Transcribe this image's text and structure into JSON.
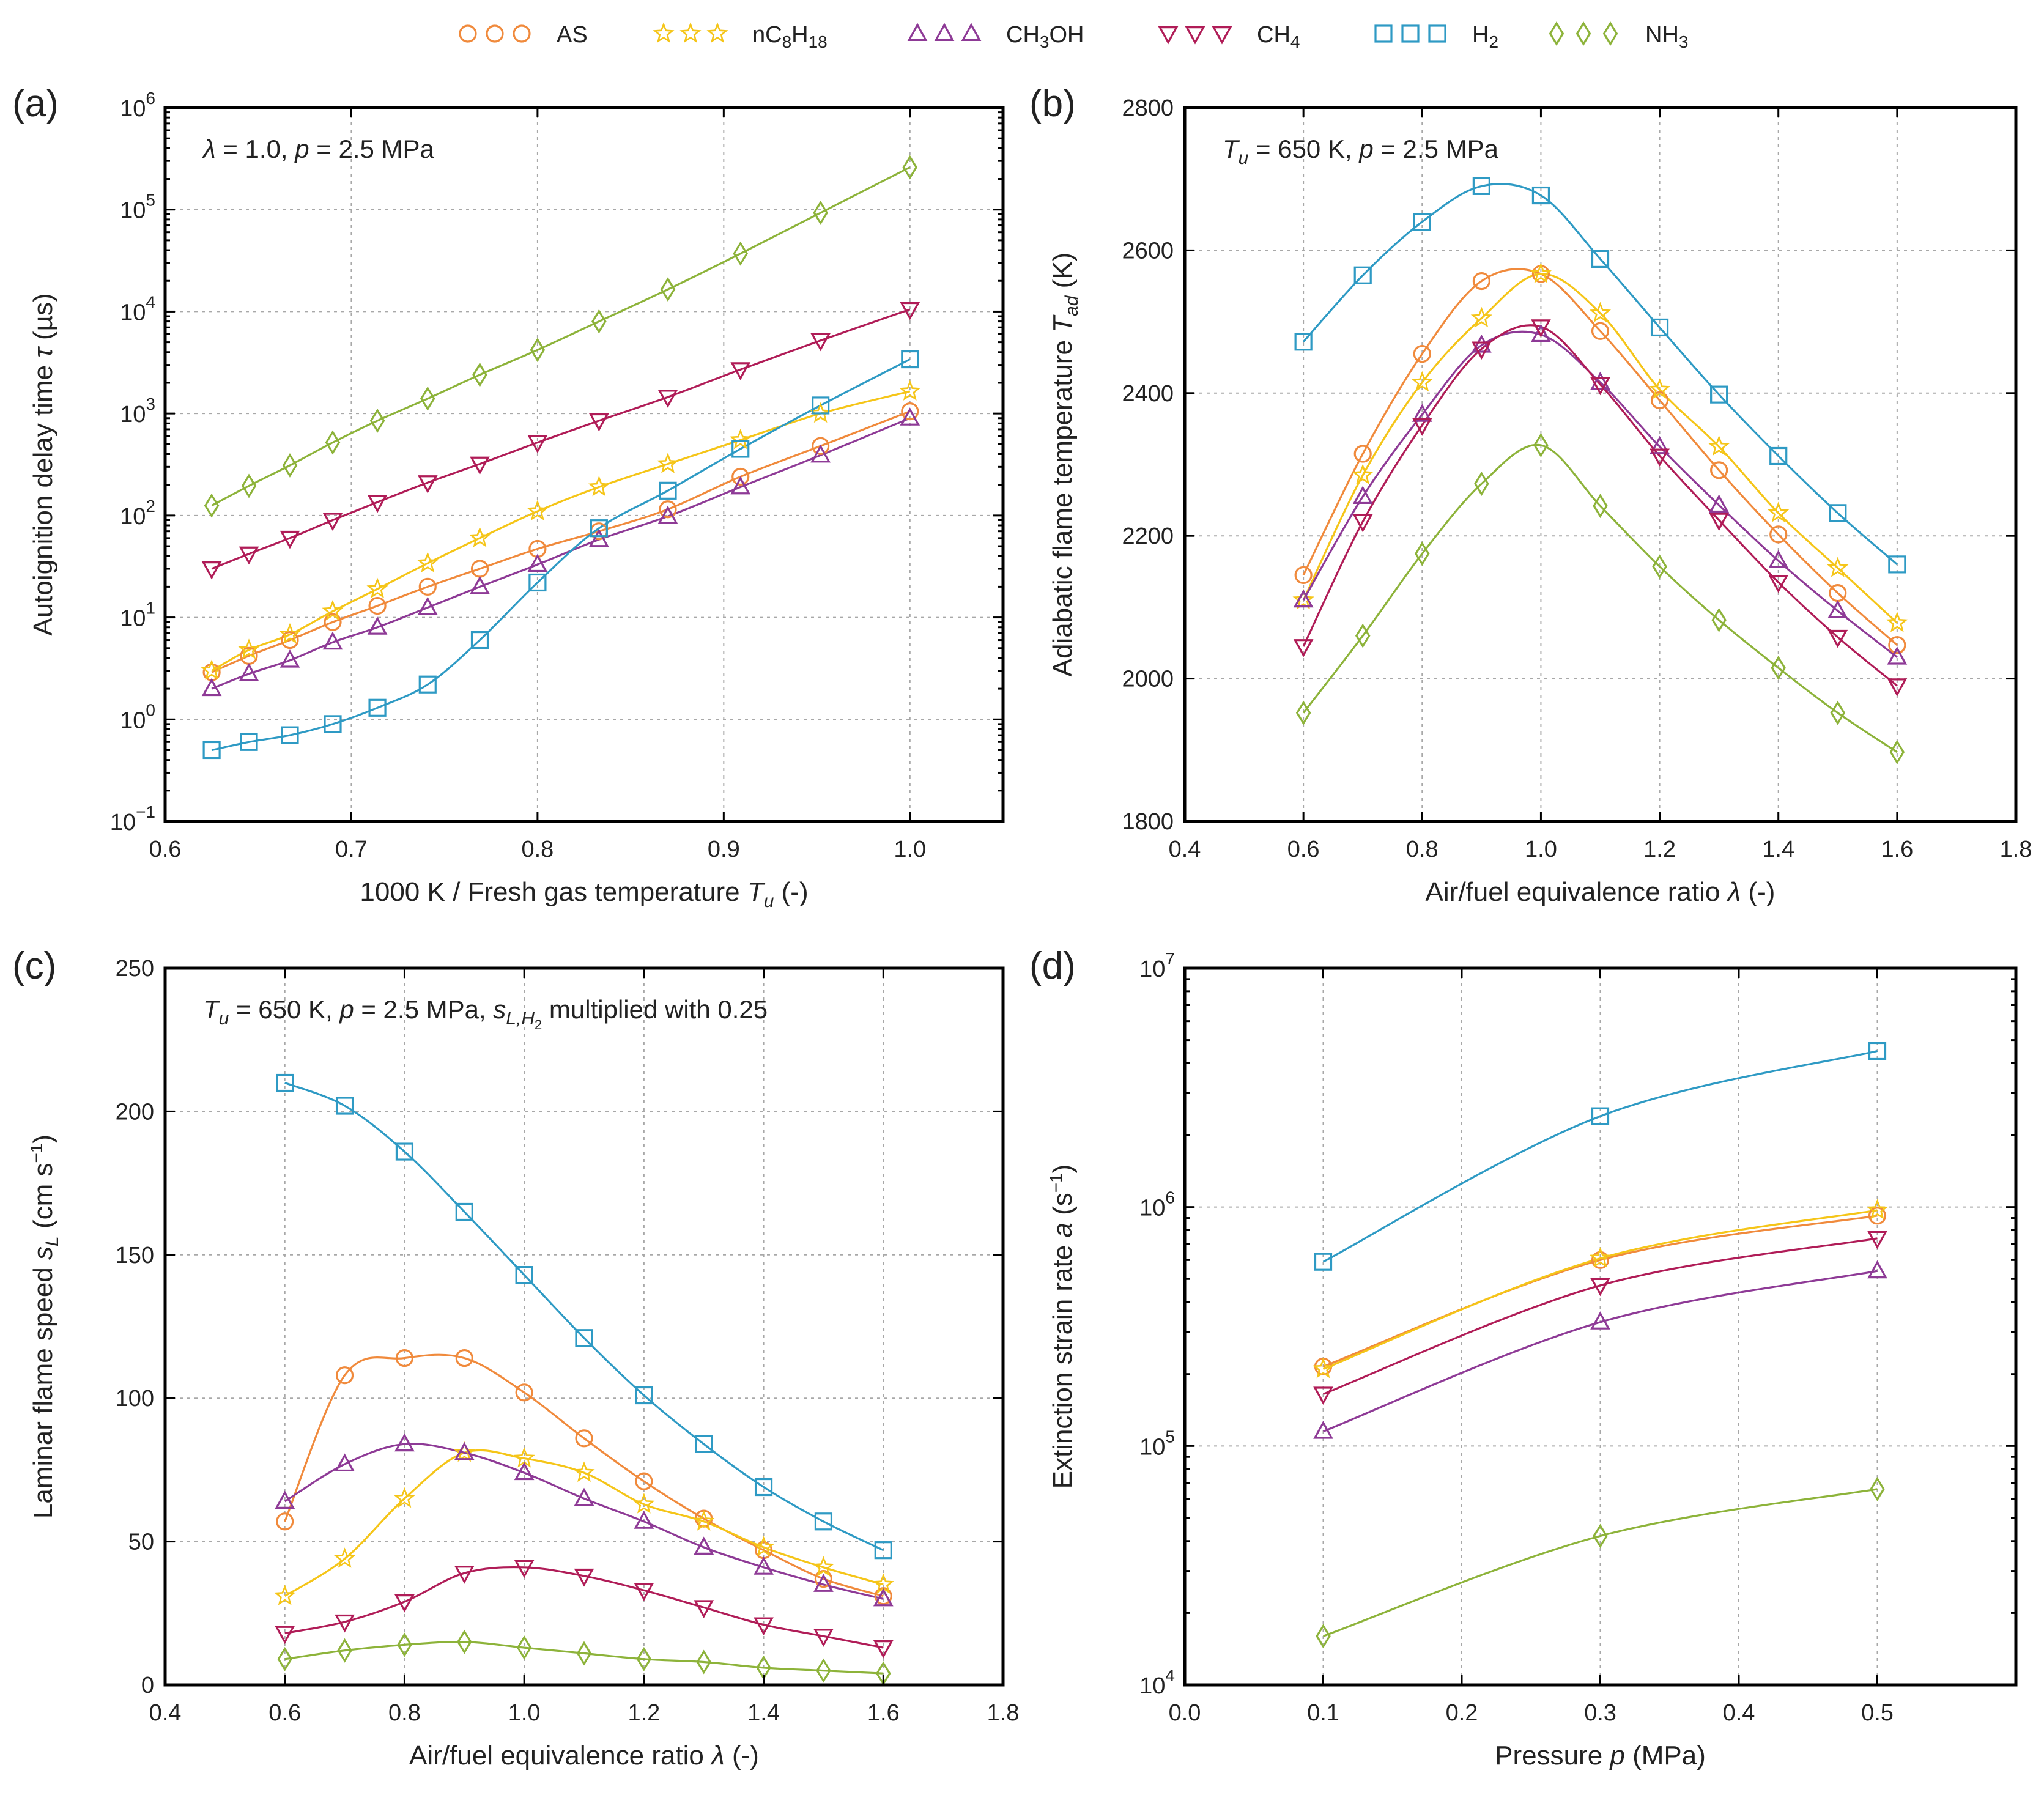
{
  "colors": {
    "AS": "#f08a3c",
    "nC8H18": "#f5c518",
    "CH3OH": "#8e3a96",
    "CH4": "#b01c57",
    "H2": "#2e9ac4",
    "NH3": "#8db33a"
  },
  "legend": [
    {
      "key": "AS",
      "marker": "circle",
      "label": "AS"
    },
    {
      "key": "nC8H18",
      "marker": "star",
      "label": "nC8H18",
      "label_parts": [
        "nC",
        "8",
        "H",
        "18"
      ]
    },
    {
      "key": "CH3OH",
      "marker": "triangle-up",
      "label": "CH3OH",
      "label_parts": [
        "CH",
        "3",
        "OH",
        ""
      ]
    },
    {
      "key": "CH4",
      "marker": "triangle-down",
      "label": "CH4",
      "label_parts": [
        "CH",
        "4"
      ]
    },
    {
      "key": "H2",
      "marker": "square",
      "label": "H2",
      "label_parts": [
        "H",
        "2"
      ]
    },
    {
      "key": "NH3",
      "marker": "diamond",
      "label": "NH3",
      "label_parts": [
        "NH",
        "3"
      ]
    }
  ],
  "chart_data": [
    {
      "id": "a",
      "type": "line",
      "panel_label": "(a)",
      "annotation": "λ = 1.0, p = 2.5 MPa",
      "xlabel": "1000 K / Fresh gas temperature T_u (-)",
      "ylabel": "Autoignition delay time τ (µs)",
      "yscale": "log",
      "xlim": [
        0.6,
        1.05
      ],
      "ylim": [
        0.1,
        1000000
      ],
      "xticks": [
        0.6,
        0.7,
        0.8,
        0.9,
        1.0
      ],
      "xtick_labels": [
        "0.6",
        "0.7",
        "0.8",
        "0.9",
        "1.0"
      ],
      "yticks_exp": [
        -1,
        0,
        1,
        2,
        3,
        4,
        5,
        6
      ],
      "grid": true,
      "x": [
        0.625,
        0.645,
        0.667,
        0.69,
        0.714,
        0.741,
        0.769,
        0.8,
        0.833,
        0.87,
        0.909,
        0.952,
        1.0
      ],
      "series": [
        {
          "name": "AS",
          "values": [
            2.9,
            4.2,
            6.0,
            9.0,
            13,
            20,
            30,
            47,
            70,
            115,
            240,
            480,
            1050
          ]
        },
        {
          "name": "nC8H18",
          "values": [
            3.0,
            4.8,
            6.8,
            11.5,
            19,
            34,
            60,
            110,
            190,
            320,
            550,
            1000,
            1650
          ]
        },
        {
          "name": "CH3OH",
          "values": [
            2.0,
            2.8,
            3.8,
            5.7,
            8.0,
            12.5,
            20,
            33,
            58,
            98,
            190,
            390,
            900
          ]
        },
        {
          "name": "CH4",
          "values": [
            30,
            42,
            60,
            90,
            135,
            210,
            320,
            520,
            850,
            1450,
            2700,
            5200,
            10500
          ]
        },
        {
          "name": "H2",
          "values": [
            0.5,
            0.6,
            0.7,
            0.9,
            1.3,
            2.2,
            6.0,
            22,
            75,
            175,
            450,
            1200,
            3400
          ]
        },
        {
          "name": "NH3",
          "values": [
            125,
            195,
            310,
            520,
            850,
            1400,
            2400,
            4200,
            8000,
            16500,
            37000,
            93000,
            260000
          ]
        }
      ]
    },
    {
      "id": "b",
      "type": "line",
      "panel_label": "(b)",
      "annotation": "T_u = 650 K, p = 2.5 MPa",
      "xlabel": "Air/fuel equivalence ratio λ (-)",
      "ylabel": "Adiabatic flame temperature T_ad (K)",
      "yscale": "linear",
      "xlim": [
        0.4,
        1.8
      ],
      "ylim": [
        1800,
        2800
      ],
      "xticks": [
        0.4,
        0.6,
        0.8,
        1.0,
        1.2,
        1.4,
        1.6,
        1.8
      ],
      "xtick_labels": [
        "0.4",
        "0.6",
        "0.8",
        "1.0",
        "1.2",
        "1.4",
        "1.6",
        "1.8"
      ],
      "yticks": [
        1800,
        2000,
        2200,
        2400,
        2600,
        2800
      ],
      "ytick_labels": [
        "1800",
        "2000",
        "2200",
        "2400",
        "2600",
        "2800"
      ],
      "grid": true,
      "x": [
        0.6,
        0.7,
        0.8,
        0.9,
        1.0,
        1.1,
        1.2,
        1.3,
        1.4,
        1.5,
        1.6
      ],
      "series": [
        {
          "name": "AS",
          "values": [
            2145,
            2315,
            2455,
            2557,
            2567,
            2487,
            2390,
            2292,
            2202,
            2120,
            2047
          ]
        },
        {
          "name": "nC8H18",
          "values": [
            2110,
            2285,
            2415,
            2505,
            2567,
            2512,
            2405,
            2325,
            2232,
            2155,
            2078
          ]
        },
        {
          "name": "CH3OH",
          "values": [
            2110,
            2255,
            2370,
            2467,
            2482,
            2415,
            2325,
            2243,
            2165,
            2095,
            2030
          ]
        },
        {
          "name": "CH4",
          "values": [
            2045,
            2220,
            2355,
            2462,
            2493,
            2412,
            2312,
            2222,
            2135,
            2058,
            1990
          ]
        },
        {
          "name": "H2",
          "values": [
            2472,
            2565,
            2640,
            2690,
            2677,
            2588,
            2492,
            2398,
            2312,
            2232,
            2160
          ]
        },
        {
          "name": "NH3",
          "values": [
            1952,
            2060,
            2175,
            2273,
            2327,
            2242,
            2157,
            2082,
            2015,
            1952,
            1897
          ]
        }
      ]
    },
    {
      "id": "c",
      "type": "line",
      "panel_label": "(c)",
      "annotation": "T_u = 650 K, p = 2.5 MPa, s_L,H2 multiplied with 0.25",
      "xlabel": "Air/fuel equivalence ratio λ (-)",
      "ylabel": "Laminar flame speed s_L (cm s⁻¹)",
      "yscale": "linear",
      "xlim": [
        0.4,
        1.8
      ],
      "ylim": [
        0,
        250
      ],
      "xticks": [
        0.4,
        0.6,
        0.8,
        1.0,
        1.2,
        1.4,
        1.6,
        1.8
      ],
      "xtick_labels": [
        "0.4",
        "0.6",
        "0.8",
        "1.0",
        "1.2",
        "1.4",
        "1.6",
        "1.8"
      ],
      "yticks": [
        0,
        50,
        100,
        150,
        200,
        250
      ],
      "ytick_labels": [
        "0",
        "50",
        "100",
        "150",
        "200",
        "250"
      ],
      "grid": true,
      "x": [
        0.6,
        0.7,
        0.8,
        0.9,
        1.0,
        1.1,
        1.2,
        1.3,
        1.4,
        1.5,
        1.6
      ],
      "series": [
        {
          "name": "AS",
          "values": [
            57,
            108,
            114,
            114,
            102,
            86,
            71,
            58,
            47,
            37,
            31
          ]
        },
        {
          "name": "nC8H18",
          "values": [
            31,
            44,
            65,
            81,
            79,
            74,
            63,
            57,
            48,
            41,
            35
          ]
        },
        {
          "name": "CH3OH",
          "values": [
            64,
            77,
            84,
            81,
            74,
            65,
            57,
            48,
            41,
            35,
            30
          ]
        },
        {
          "name": "CH4",
          "values": [
            18,
            22,
            29,
            39,
            41,
            38,
            33,
            27,
            21,
            17,
            13
          ]
        },
        {
          "name": "H2",
          "values": [
            210,
            202,
            186,
            165,
            143,
            121,
            101,
            84,
            69,
            57,
            47
          ]
        },
        {
          "name": "NH3",
          "values": [
            9,
            12,
            14,
            15,
            13,
            11,
            9,
            8,
            6,
            5,
            4
          ]
        }
      ]
    },
    {
      "id": "d",
      "type": "line",
      "panel_label": "(d)",
      "annotation": "",
      "xlabel": "Pressure p (MPa)",
      "ylabel": "Extinction strain rate a (s⁻¹)",
      "yscale": "log",
      "xlim": [
        0.0,
        0.6
      ],
      "ylim": [
        10000,
        10000000
      ],
      "xticks": [
        0.0,
        0.1,
        0.2,
        0.3,
        0.4,
        0.5
      ],
      "xtick_labels": [
        "0.0",
        "0.1",
        "0.2",
        "0.3",
        "0.4",
        "0.5"
      ],
      "yticks_exp": [
        4,
        5,
        6,
        7
      ],
      "grid": true,
      "x": [
        0.1,
        0.3,
        0.5
      ],
      "series": [
        {
          "name": "AS",
          "values": [
            215000,
            600000,
            920000
          ]
        },
        {
          "name": "nC8H18",
          "values": [
            210000,
            610000,
            970000
          ]
        },
        {
          "name": "CH3OH",
          "values": [
            115000,
            330000,
            540000
          ]
        },
        {
          "name": "CH4",
          "values": [
            165000,
            470000,
            740000
          ]
        },
        {
          "name": "H2",
          "values": [
            590000,
            2400000,
            4500000
          ]
        },
        {
          "name": "NH3",
          "values": [
            16000,
            42000,
            66000
          ]
        }
      ]
    }
  ]
}
